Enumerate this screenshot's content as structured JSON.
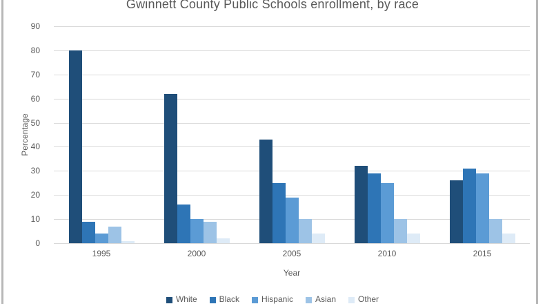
{
  "chart_data": {
    "type": "bar",
    "title": "Gwinnett County Public Schools enrollment, by race",
    "xlabel": "Year",
    "ylabel": "Percentage",
    "categories": [
      "1995",
      "2000",
      "2005",
      "2010",
      "2015"
    ],
    "series": [
      {
        "name": "White",
        "color": "#1F4E79",
        "values": [
          80,
          62,
          43,
          32,
          26
        ]
      },
      {
        "name": "Black",
        "color": "#2E75B6",
        "values": [
          9,
          16,
          25,
          29,
          31
        ]
      },
      {
        "name": "Hispanic",
        "color": "#5B9BD5",
        "values": [
          4,
          10,
          19,
          25,
          29
        ]
      },
      {
        "name": "Asian",
        "color": "#9DC3E6",
        "values": [
          7,
          9,
          10,
          10,
          10
        ]
      },
      {
        "name": "Other",
        "color": "#DEEBF7",
        "values": [
          1,
          2,
          4,
          4,
          4
        ]
      }
    ],
    "ylim": [
      0,
      90
    ],
    "ytick_step": 10,
    "grid": true,
    "legend_position": "bottom"
  },
  "colors": {
    "text": "#595959",
    "gridline": "#D9D9D9",
    "frame_border": "#B7B7B7",
    "background": "#FFFFFF"
  }
}
